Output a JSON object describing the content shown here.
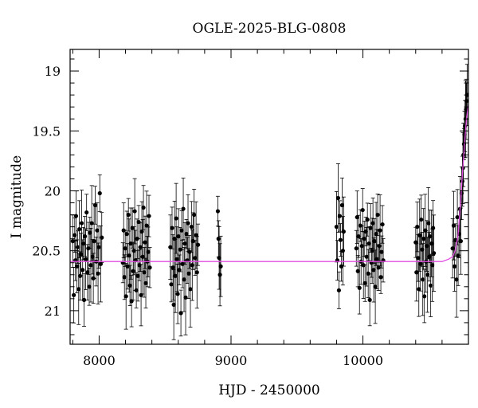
{
  "chart_data": {
    "type": "scatter",
    "title": "OGLE-2025-BLG-0808",
    "xlabel": "HJD - 2450000",
    "ylabel": "I magnitude",
    "xlim": [
      7780,
      10800
    ],
    "ylim": [
      21.28,
      18.82
    ],
    "y_inverted": true,
    "xticks": [
      8000,
      9000,
      10000
    ],
    "xtick_labels": [
      "8000",
      "9000",
      "10000"
    ],
    "yticks": [
      19,
      19.5,
      20,
      20.5,
      21
    ],
    "ytick_labels": [
      "19",
      "19.5",
      "20",
      "20.5",
      "21"
    ],
    "grid": false,
    "legend": "none",
    "points": [
      [
        7800,
        20.42
      ],
      [
        7808,
        20.87
      ],
      [
        7815,
        20.37
      ],
      [
        7820,
        20.58
      ],
      [
        7825,
        20.21
      ],
      [
        7832,
        20.63
      ],
      [
        7838,
        20.47
      ],
      [
        7845,
        20.82
      ],
      [
        7850,
        20.32
      ],
      [
        7856,
        20.71
      ],
      [
        7862,
        20.53
      ],
      [
        7868,
        20.27
      ],
      [
        7875,
        20.66
      ],
      [
        7880,
        20.44
      ],
      [
        7886,
        20.91
      ],
      [
        7892,
        20.38
      ],
      [
        7898,
        20.57
      ],
      [
        7905,
        20.18
      ],
      [
        7912,
        20.68
      ],
      [
        7918,
        20.48
      ],
      [
        7925,
        20.8
      ],
      [
        7930,
        20.35
      ],
      [
        7937,
        20.62
      ],
      [
        7944,
        20.27
      ],
      [
        7950,
        20.55
      ],
      [
        7956,
        20.73
      ],
      [
        7962,
        20.42
      ],
      [
        7970,
        20.12
      ],
      [
        7978,
        20.59
      ],
      [
        7985,
        20.33
      ],
      [
        7992,
        20.69
      ],
      [
        7998,
        20.47
      ],
      [
        8005,
        20.02
      ],
      [
        8012,
        20.61
      ],
      [
        8020,
        20.39
      ],
      [
        8180,
        20.6
      ],
      [
        8186,
        20.33
      ],
      [
        8192,
        20.72
      ],
      [
        8198,
        20.48
      ],
      [
        8204,
        20.88
      ],
      [
        8210,
        20.36
      ],
      [
        8216,
        20.63
      ],
      [
        8222,
        20.2
      ],
      [
        8228,
        20.54
      ],
      [
        8234,
        20.79
      ],
      [
        8240,
        20.44
      ],
      [
        8246,
        20.92
      ],
      [
        8252,
        20.31
      ],
      [
        8258,
        20.67
      ],
      [
        8264,
        20.5
      ],
      [
        8270,
        20.17
      ],
      [
        8276,
        20.58
      ],
      [
        8282,
        20.83
      ],
      [
        8288,
        20.4
      ],
      [
        8294,
        20.71
      ],
      [
        8300,
        20.26
      ],
      [
        8306,
        20.62
      ],
      [
        8312,
        20.47
      ],
      [
        8318,
        20.87
      ],
      [
        8324,
        20.34
      ],
      [
        8330,
        20.55
      ],
      [
        8336,
        20.14
      ],
      [
        8342,
        20.68
      ],
      [
        8348,
        20.43
      ],
      [
        8354,
        20.77
      ],
      [
        8360,
        20.29
      ],
      [
        8366,
        20.59
      ],
      [
        8372,
        20.51
      ],
      [
        8378,
        20.21
      ],
      [
        8384,
        20.64
      ],
      [
        8540,
        20.47
      ],
      [
        8547,
        20.78
      ],
      [
        8553,
        20.31
      ],
      [
        8560,
        20.64
      ],
      [
        8566,
        20.95
      ],
      [
        8572,
        20.4
      ],
      [
        8578,
        20.71
      ],
      [
        8584,
        20.23
      ],
      [
        8590,
        20.57
      ],
      [
        8596,
        20.86
      ],
      [
        8602,
        20.38
      ],
      [
        8608,
        20.66
      ],
      [
        8614,
        20.49
      ],
      [
        8620,
        21.02
      ],
      [
        8626,
        20.33
      ],
      [
        8632,
        20.61
      ],
      [
        8638,
        20.15
      ],
      [
        8644,
        20.74
      ],
      [
        8650,
        20.44
      ],
      [
        8656,
        20.89
      ],
      [
        8662,
        20.36
      ],
      [
        8668,
        20.58
      ],
      [
        8674,
        20.27
      ],
      [
        8680,
        20.69
      ],
      [
        8686,
        20.51
      ],
      [
        8692,
        20.82
      ],
      [
        8700,
        20.3
      ],
      [
        8706,
        20.62
      ],
      [
        8712,
        20.42
      ],
      [
        8720,
        20.2
      ],
      [
        8728,
        20.56
      ],
      [
        8735,
        20.37
      ],
      [
        8742,
        20.68
      ],
      [
        8750,
        20.45
      ],
      [
        8900,
        20.17
      ],
      [
        8905,
        20.4
      ],
      [
        8910,
        20.56
      ],
      [
        8916,
        20.7
      ],
      [
        8922,
        20.63
      ],
      [
        9800,
        20.3
      ],
      [
        9806,
        20.58
      ],
      [
        9812,
        20.06
      ],
      [
        9818,
        20.83
      ],
      [
        9824,
        20.21
      ],
      [
        9830,
        20.41
      ],
      [
        9836,
        20.63
      ],
      [
        9842,
        20.12
      ],
      [
        9848,
        20.5
      ],
      [
        9854,
        20.34
      ],
      [
        9950,
        20.48
      ],
      [
        9956,
        20.22
      ],
      [
        9962,
        20.67
      ],
      [
        9968,
        20.38
      ],
      [
        9974,
        20.81
      ],
      [
        9980,
        20.29
      ],
      [
        9986,
        20.59
      ],
      [
        9992,
        20.46
      ],
      [
        9998,
        20.16
      ],
      [
        10004,
        20.62
      ],
      [
        10010,
        20.4
      ],
      [
        10016,
        20.77
      ],
      [
        10022,
        20.34
      ],
      [
        10028,
        20.55
      ],
      [
        10034,
        20.24
      ],
      [
        10040,
        20.69
      ],
      [
        10046,
        20.44
      ],
      [
        10052,
        20.91
      ],
      [
        10058,
        20.31
      ],
      [
        10064,
        20.6
      ],
      [
        10070,
        20.5
      ],
      [
        10076,
        20.27
      ],
      [
        10082,
        20.66
      ],
      [
        10088,
        20.42
      ],
      [
        10094,
        20.8
      ],
      [
        10100,
        20.36
      ],
      [
        10106,
        20.57
      ],
      [
        10112,
        20.2
      ],
      [
        10118,
        20.64
      ],
      [
        10124,
        20.46
      ],
      [
        10130,
        20.33
      ],
      [
        10136,
        20.72
      ],
      [
        10142,
        20.51
      ],
      [
        10148,
        20.28
      ],
      [
        10154,
        20.58
      ],
      [
        10400,
        20.43
      ],
      [
        10406,
        20.68
      ],
      [
        10412,
        20.3
      ],
      [
        10418,
        20.56
      ],
      [
        10424,
        20.82
      ],
      [
        10430,
        20.37
      ],
      [
        10436,
        20.61
      ],
      [
        10442,
        20.24
      ],
      [
        10448,
        20.49
      ],
      [
        10454,
        20.74
      ],
      [
        10460,
        20.4
      ],
      [
        10466,
        20.88
      ],
      [
        10472,
        20.33
      ],
      [
        10478,
        20.59
      ],
      [
        10484,
        20.46
      ],
      [
        10490,
        20.7
      ],
      [
        10496,
        20.27
      ],
      [
        10502,
        20.55
      ],
      [
        10508,
        20.38
      ],
      [
        10514,
        20.79
      ],
      [
        10520,
        20.44
      ],
      [
        10526,
        20.62
      ],
      [
        10532,
        20.31
      ],
      [
        10538,
        20.52
      ],
      [
        10680,
        20.48
      ],
      [
        10688,
        20.29
      ],
      [
        10695,
        20.63
      ],
      [
        10702,
        20.41
      ],
      [
        10710,
        20.74
      ],
      [
        10716,
        20.22
      ],
      [
        10722,
        20.54
      ],
      [
        10730,
        20.36
      ],
      [
        10736,
        20.15
      ],
      [
        10742,
        20.42
      ],
      [
        10748,
        20.02
      ],
      [
        10754,
        19.92
      ],
      [
        10758,
        19.81
      ],
      [
        10762,
        19.7
      ],
      [
        10766,
        19.61
      ],
      [
        10770,
        19.53
      ],
      [
        10774,
        19.46
      ],
      [
        10778,
        19.4
      ],
      [
        10782,
        19.32
      ],
      [
        10786,
        19.25
      ],
      [
        10790,
        19.2
      ]
    ],
    "error_bars": "vertical, ~0.1-0.3 mag",
    "model": {
      "name": "",
      "color": "#e04ce0",
      "baseline": 20.59,
      "x": [
        7780,
        10600,
        10650,
        10680,
        10700,
        10720,
        10740,
        10755,
        10770,
        10785,
        10800
      ],
      "y": [
        20.59,
        20.59,
        20.57,
        20.55,
        20.5,
        20.38,
        20.1,
        19.85,
        19.62,
        19.4,
        19.28
      ]
    }
  },
  "colors": {
    "points": "#000000",
    "model": "#e04ce0",
    "axes": "#000000"
  }
}
